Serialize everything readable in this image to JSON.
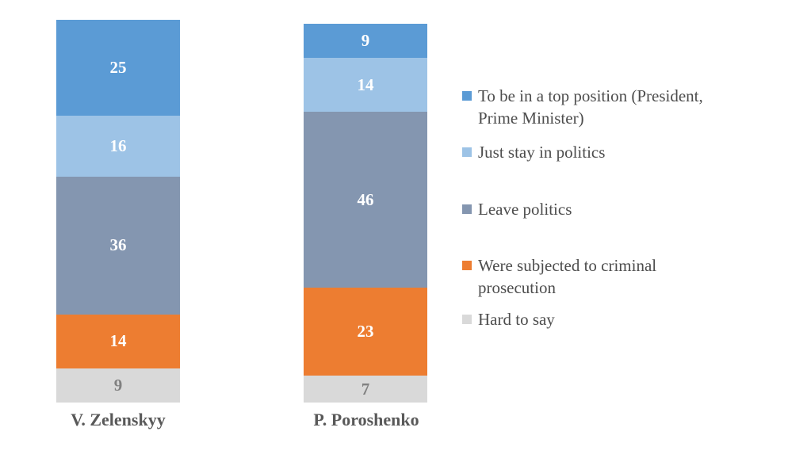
{
  "chart_data": {
    "type": "bar",
    "stacked": true,
    "orientation": "vertical",
    "stack_order": "first_series_on_top",
    "title": "",
    "xlabel": "",
    "ylabel": "",
    "ylim": [
      0,
      100
    ],
    "axes_hidden": true,
    "grid": false,
    "value_labels_shown": true,
    "legend_position": "right",
    "background_color": "#FFFFFF",
    "category_label_color": "#595959",
    "legend_text_color": "#4D4D4D",
    "categories": [
      "V. Zelenskyy",
      "P. Poroshenko"
    ],
    "series": [
      {
        "name": "To be in a top position (President, Prime Minister)",
        "legend_label": "To be in a top position (President,\nPrime Minister)",
        "color": "#5B9BD5",
        "value_label_color": "#FFFFFF",
        "values": [
          25,
          9
        ]
      },
      {
        "name": "Just stay in politics",
        "legend_label": "Just stay in politics",
        "color": "#9DC3E6",
        "value_label_color": "#FFFFFF",
        "values": [
          16,
          14
        ]
      },
      {
        "name": "Leave politics",
        "legend_label": "Leave politics",
        "color": "#8496B0",
        "value_label_color": "#FFFFFF",
        "values": [
          36,
          46
        ]
      },
      {
        "name": "Were subjected to criminal prosecution",
        "legend_label": "Were subjected to criminal\nprosecution",
        "color": "#ED7D31",
        "value_label_color": "#FFFFFF",
        "values": [
          14,
          23
        ]
      },
      {
        "name": "Hard to say",
        "legend_label": "Hard to say",
        "color": "#D9D9D9",
        "value_label_color": "#808080",
        "values": [
          9,
          7
        ]
      }
    ]
  }
}
